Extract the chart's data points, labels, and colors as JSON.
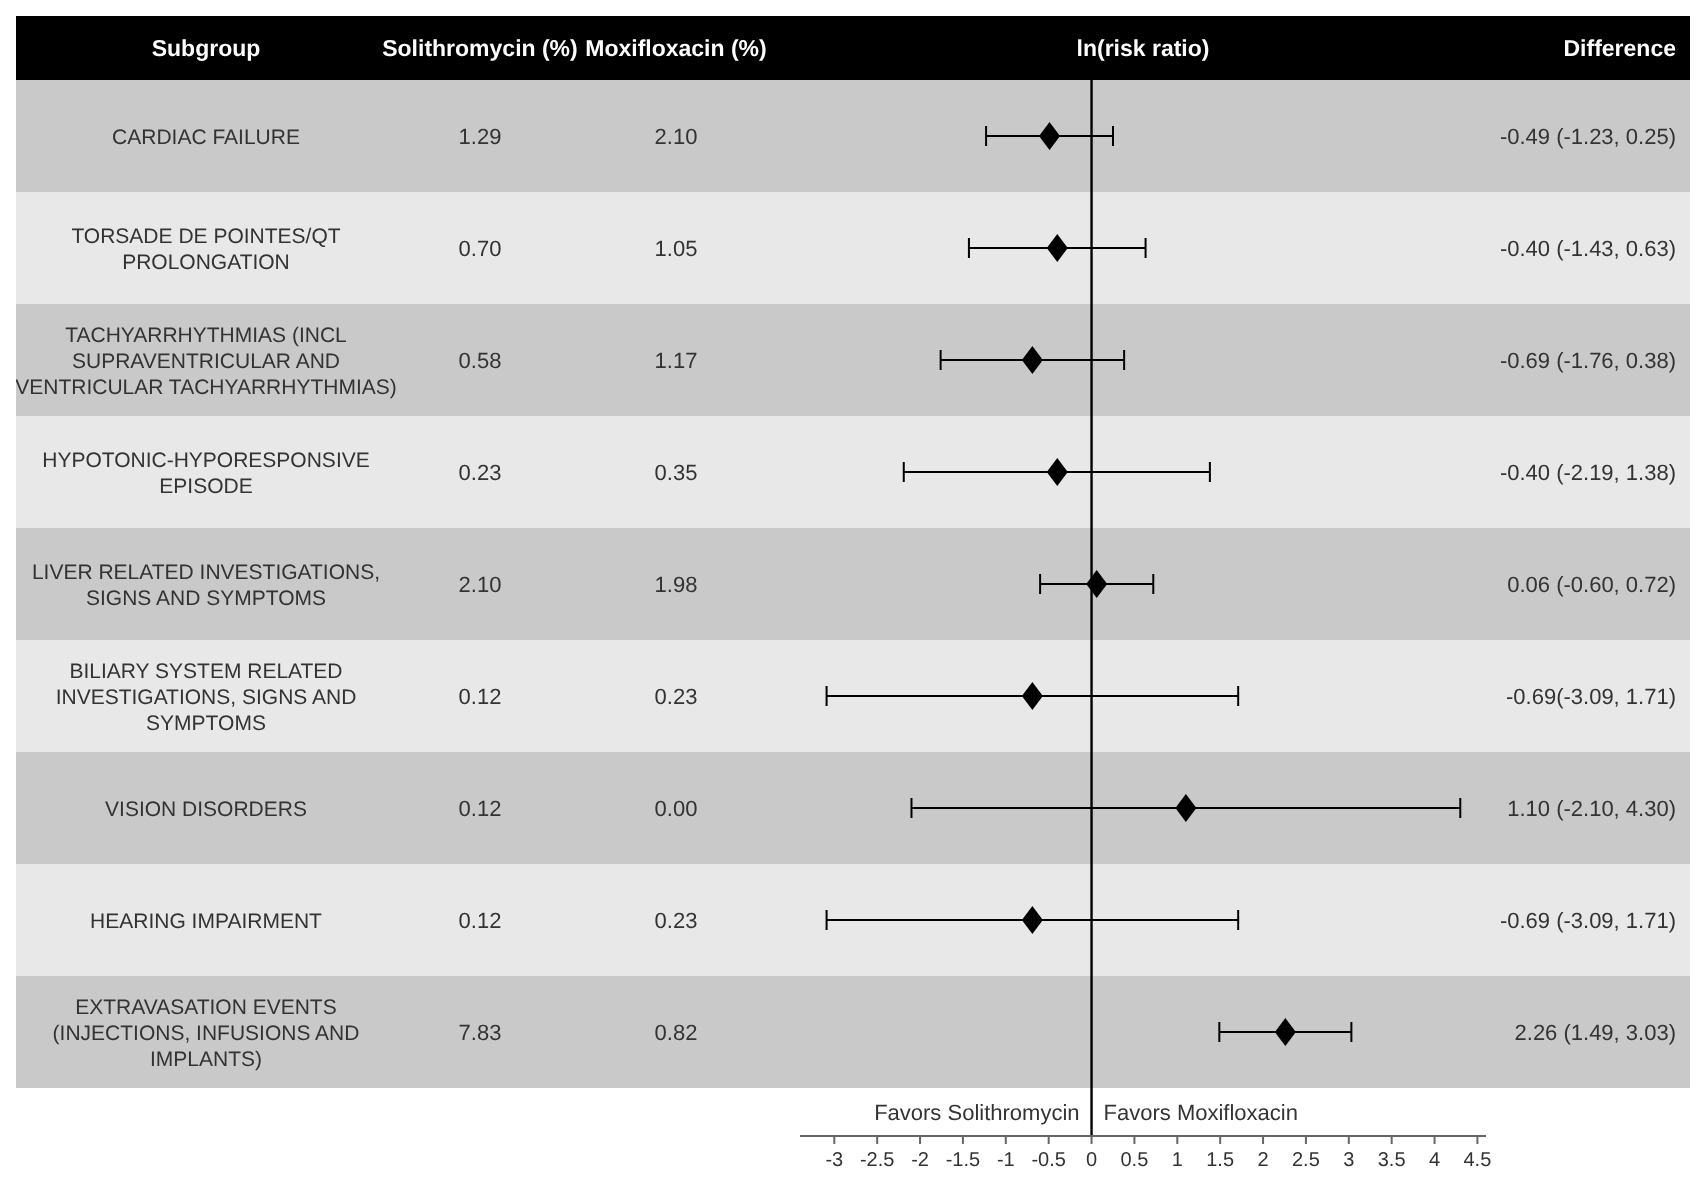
{
  "chart_data": [
    {
      "type": "heatmap",
      "ylabel": "Subgroup",
      "categories": [
        "Solithromycin (%)",
        "Moxifloxacin (%)"
      ],
      "y_categories": [
        "CARDIAC FAILURE",
        "TORSADE DE POINTES/QT PROLONGATION",
        "TACHYARRHYTHMIAS (INCL SUPRAVENTRICULAR AND VENTRICULAR TACHYARRHYTHMIAS)",
        "HYPOTONIC-HYPORESPONSIVE EPISODE",
        "LIVER RELATED INVESTIGATIONS, SIGNS AND SYMPTOMS",
        "BILIARY SYSTEM RELATED INVESTIGATIONS, SIGNS AND SYMPTOMS",
        "VISION DISORDERS",
        "HEARING IMPAIRMENT",
        "EXTRAVASATION EVENTS (INJECTIONS, INFUSIONS AND IMPLANTS)"
      ],
      "cells": [
        [
          1.29,
          2.1
        ],
        [
          0.7,
          1.05
        ],
        [
          0.58,
          1.17
        ],
        [
          0.23,
          0.35
        ],
        [
          2.1,
          1.98
        ],
        [
          0.12,
          0.23
        ],
        [
          0.12,
          0.0
        ],
        [
          0.12,
          0.23
        ],
        [
          7.83,
          0.82
        ]
      ],
      "cell_labels": [
        [
          "1.29",
          "2.10"
        ],
        [
          "0.70",
          "1.05"
        ],
        [
          "0.58",
          "1.17"
        ],
        [
          "0.23",
          "0.35"
        ],
        [
          "2.10",
          "1.98"
        ],
        [
          "0.12",
          "0.23"
        ],
        [
          "0.12",
          "0.00"
        ],
        [
          "0.12",
          "0.23"
        ],
        [
          "7.83",
          "0.82"
        ]
      ]
    },
    {
      "type": "scatter",
      "orientation": "horizontal",
      "title": "ln(risk ratio)",
      "categories": [
        null,
        null,
        null,
        null,
        null,
        null,
        null,
        null,
        null
      ],
      "series": [
        {
          "name": "Difference",
          "color": "#000000",
          "values": [
            -0.49,
            -0.4,
            -0.69,
            -0.4,
            0.06,
            -0.69,
            1.1,
            -0.69,
            2.26
          ],
          "errors": [
            [
              -1.23,
              0.25
            ],
            [
              -1.43,
              0.63
            ],
            [
              -1.76,
              0.38
            ],
            [
              -2.19,
              1.38
            ],
            [
              -0.6,
              0.72
            ],
            [
              -3.09,
              1.71
            ],
            [
              -2.1,
              4.3
            ],
            [
              -3.09,
              1.71
            ],
            [
              1.49,
              3.03
            ]
          ],
          "value_labels": [
            "-0.49 (-1.23, 0.25)",
            "-0.40 (-1.43, 0.63)",
            "-0.69 (-1.76, 0.38)",
            "-0.40 (-2.19, 1.38)",
            "0.06 (-0.60, 0.72)",
            "-0.69(-3.09, 1.71)",
            "1.10 (-2.10, 4.30)",
            "-0.69 (-3.09, 1.71)",
            "2.26 (1.49, 3.03)"
          ]
        }
      ],
      "marker": "diamond",
      "xlim": [
        -3.4,
        4.6
      ],
      "xticks": [
        -3,
        -2.5,
        -2,
        -1.5,
        -1,
        -0.5,
        0,
        0.5,
        1,
        1.5,
        2,
        2.5,
        3,
        3.5,
        4,
        4.5
      ],
      "ref_lines": [
        {
          "axis": "x",
          "value": 0,
          "color": "#000000"
        }
      ],
      "annotations": [
        "Favors Solithromycin",
        "Favors Moxifloxacin"
      ]
    }
  ]
}
